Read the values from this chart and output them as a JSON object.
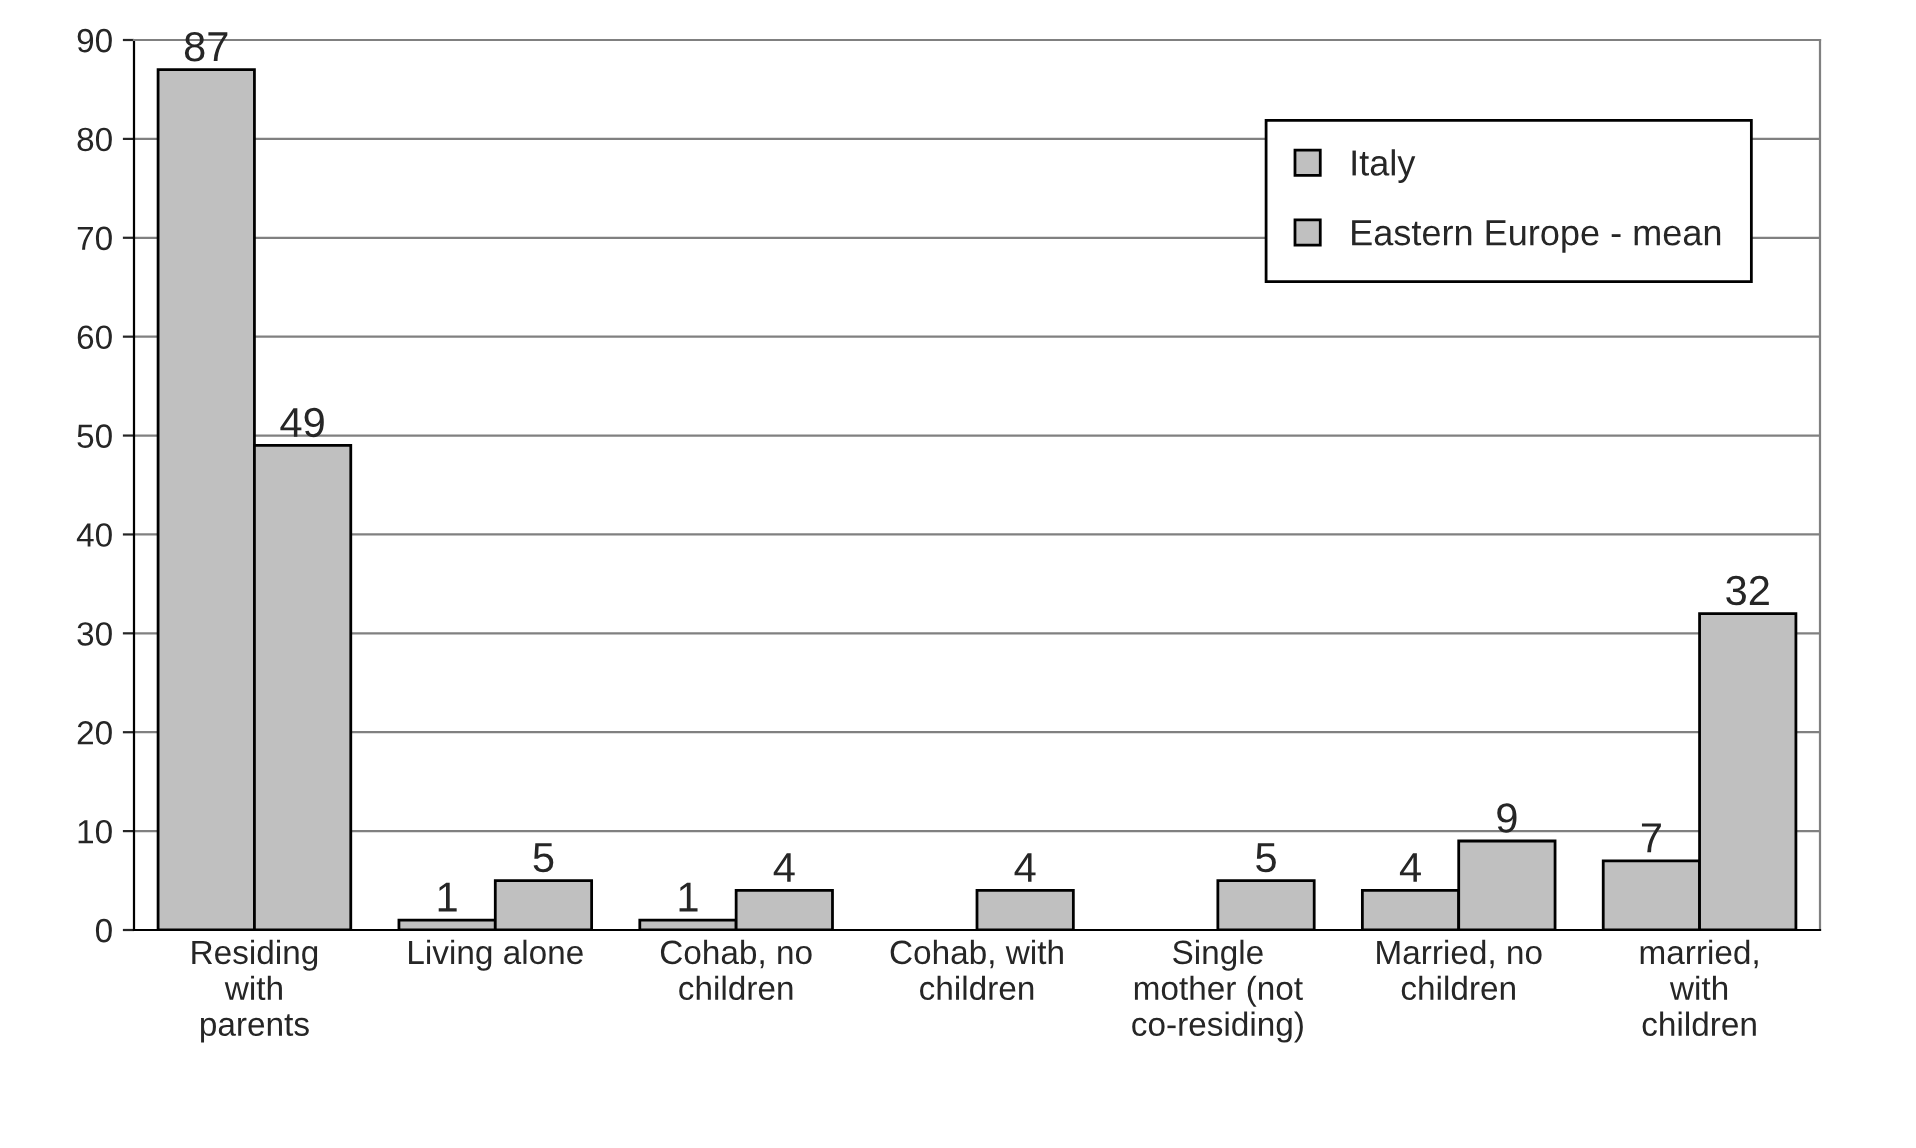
{
  "chart_data": {
    "type": "bar",
    "categories": [
      "Residing\nwith\nparents",
      "Living alone",
      "Cohab, no\nchildren",
      "Cohab, with\nchildren",
      "Single\nmother (not\nco-residing)",
      "Married, no\nchildren",
      "married,\nwith\nchildren"
    ],
    "series": [
      {
        "name": "Italy",
        "color": "#c0c0c0",
        "values": [
          87,
          1,
          1,
          null,
          null,
          4,
          7
        ]
      },
      {
        "name": "Eastern Europe - mean",
        "color": "#c0c0c0",
        "values": [
          49,
          5,
          4,
          4,
          5,
          9,
          32
        ]
      }
    ],
    "ylim": [
      0,
      90
    ],
    "yticks": [
      0,
      10,
      20,
      30,
      40,
      50,
      60,
      70,
      80,
      90
    ],
    "grid": "y",
    "legend": "top right",
    "data_labels": true
  }
}
